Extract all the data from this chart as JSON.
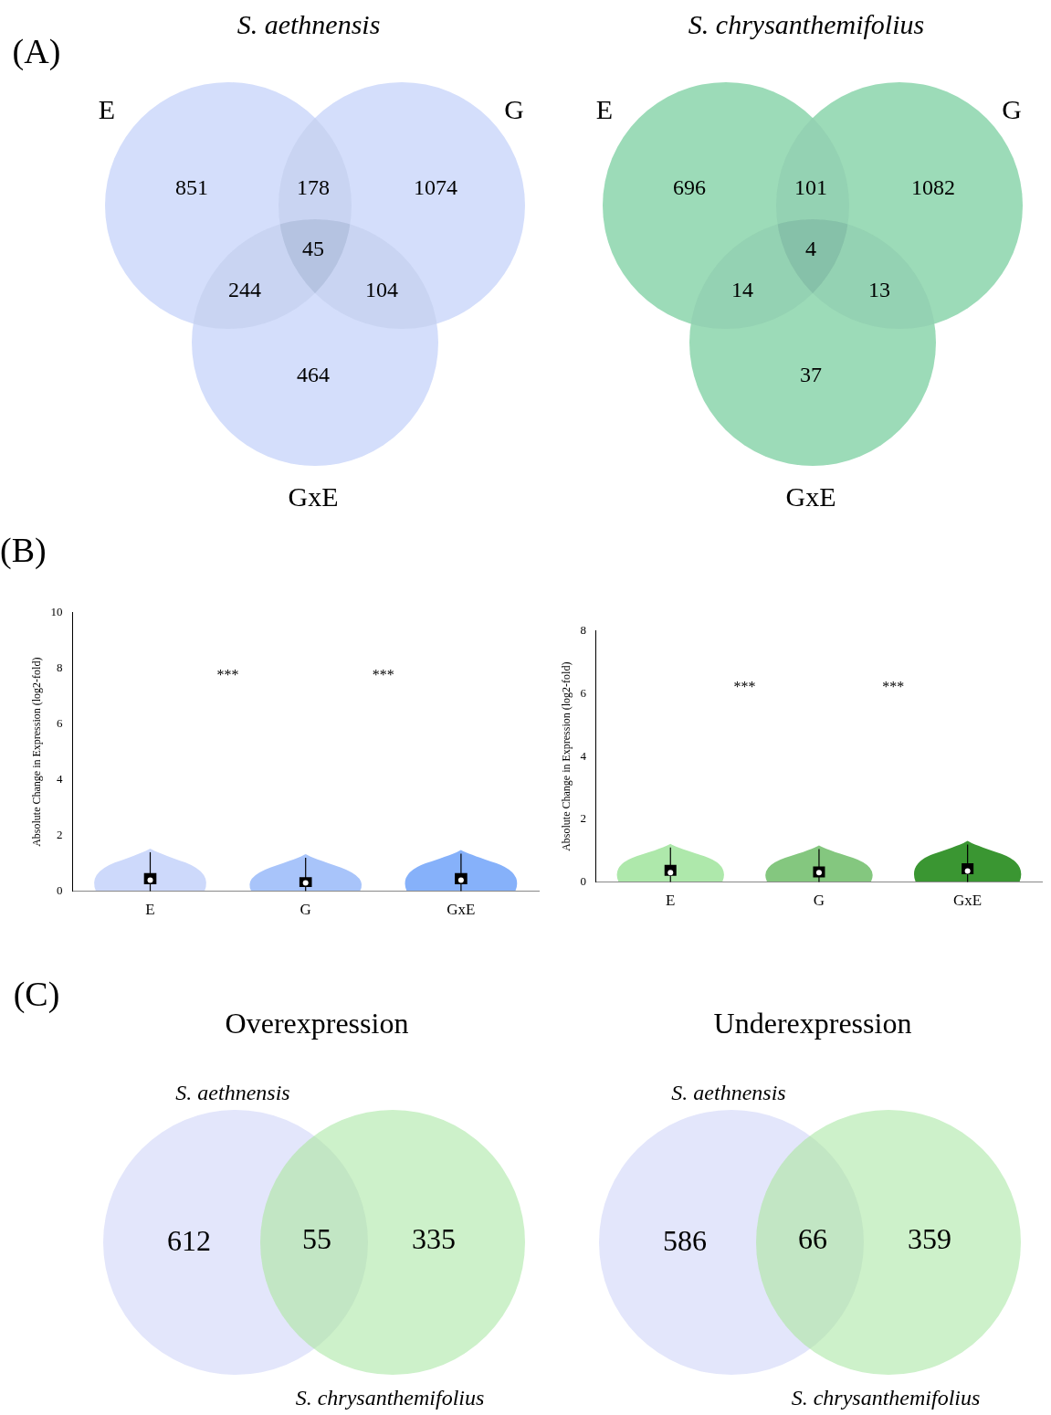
{
  "chart_data": [
    {
      "type": "other",
      "title": "S. aethnensis",
      "annotations": [
        "(A)",
        "851",
        "178",
        "1074",
        "244",
        "45",
        "104",
        "464"
      ],
      "series": [
        {
          "name": "E"
        },
        {
          "name": "G"
        },
        {
          "name": "GxE"
        }
      ]
    },
    {
      "type": "other",
      "title": "S. chrysanthemifolius",
      "annotations": [
        "696",
        "101",
        "1082",
        "14",
        "4",
        "13",
        "37"
      ],
      "series": [
        {
          "name": "E"
        },
        {
          "name": "G"
        },
        {
          "name": "GxE"
        }
      ]
    },
    {
      "type": "box",
      "ylabel": "Absolute Change in Expression (log2-fold)",
      "annotations": [
        "(B)",
        "***",
        "***"
      ],
      "categories": [
        "E",
        "G",
        "GxE"
      ],
      "ylim": [
        0,
        10
      ],
      "yticks": [
        0,
        2,
        4,
        6,
        8,
        10
      ],
      "boxes": [
        {
          "low": 0,
          "q1": 0.25,
          "median": 0.4,
          "q3": 0.65,
          "high": 1.4
        },
        {
          "low": 0,
          "q1": 0.15,
          "median": 0.3,
          "q3": 0.5,
          "high": 1.2
        },
        {
          "low": 0,
          "q1": 0.25,
          "median": 0.4,
          "q3": 0.65,
          "high": 1.35
        }
      ]
    },
    {
      "type": "box",
      "ylabel": "Absolute Change in Expression (log2-fold)",
      "annotations": [
        "***",
        "***"
      ],
      "categories": [
        "E",
        "G",
        "GxE"
      ],
      "ylim": [
        0,
        8
      ],
      "yticks": [
        0,
        2,
        4,
        6,
        8
      ],
      "boxes": [
        {
          "low": 0,
          "q1": 0.2,
          "median": 0.3,
          "q3": 0.55,
          "high": 1.1
        },
        {
          "low": 0,
          "q1": 0.15,
          "median": 0.3,
          "q3": 0.5,
          "high": 1.05
        },
        {
          "low": 0,
          "q1": 0.25,
          "median": 0.35,
          "q3": 0.6,
          "high": 1.2
        }
      ]
    },
    {
      "type": "other",
      "title": "Overexpression",
      "annotations": [
        "(C)",
        "612",
        "55",
        "335"
      ],
      "series": [
        {
          "name": "S. aethnensis"
        },
        {
          "name": "S. chrysanthemifolius"
        }
      ]
    },
    {
      "type": "other",
      "title": "Underexpression",
      "annotations": [
        "586",
        "66",
        "359"
      ],
      "series": [
        {
          "name": "S. aethnensis"
        },
        {
          "name": "S. chrysanthemifolius"
        }
      ]
    }
  ]
}
